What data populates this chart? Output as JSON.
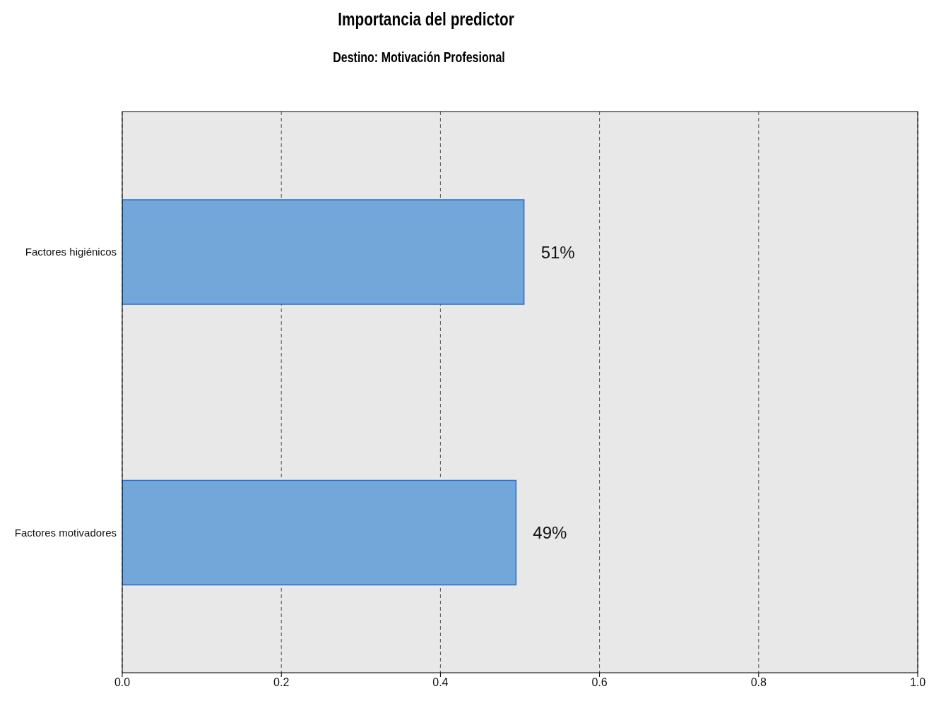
{
  "chart_data": {
    "type": "bar",
    "orientation": "horizontal",
    "title": "Importancia del predictor",
    "subtitle": "Destino: Motivación Profesional",
    "categories": [
      "Factores higiénicos",
      "Factores motivadores"
    ],
    "values": [
      0.505,
      0.495
    ],
    "value_labels": [
      "51%",
      "49%"
    ],
    "color": "#74a7d9",
    "xlim": [
      0,
      1
    ],
    "xticks": [
      {
        "value": 0,
        "label": "0.0"
      },
      {
        "value": 0.2,
        "label": "0.2"
      },
      {
        "value": 0.4,
        "label": "0.4"
      },
      {
        "value": 0.6,
        "label": "0.6"
      },
      {
        "value": 0.8,
        "label": "0.8"
      },
      {
        "value": 1,
        "label": "1.0"
      }
    ],
    "grid": "x"
  }
}
